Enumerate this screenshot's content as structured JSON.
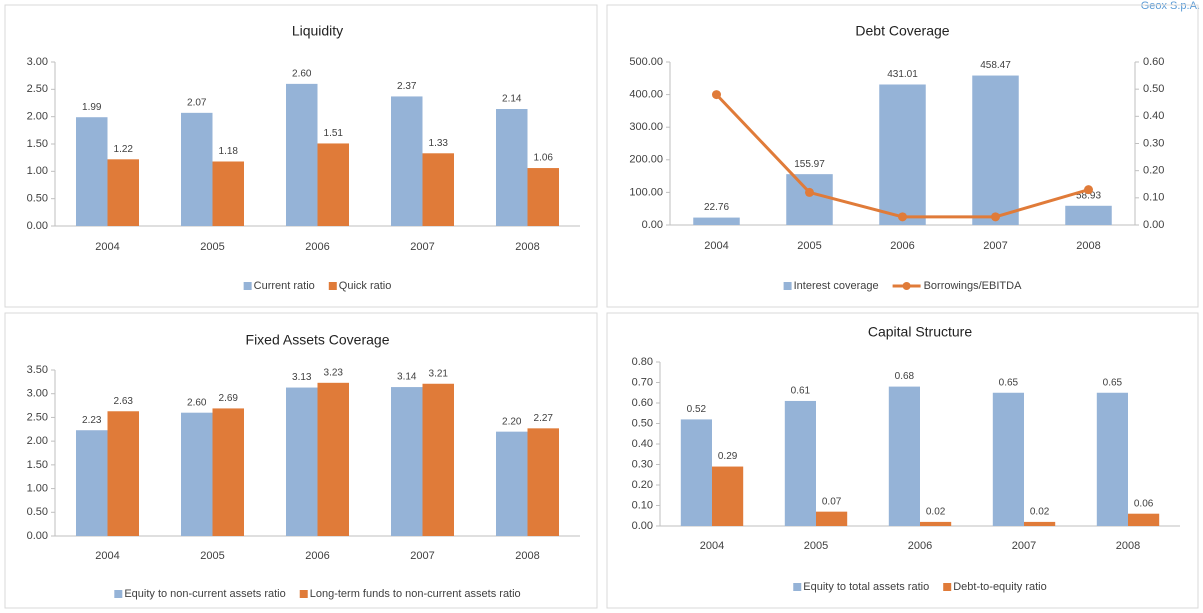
{
  "header": {
    "company": "Geox S.p.A."
  },
  "chart_data": [
    {
      "type": "bar",
      "title": "Liquidity",
      "categories": [
        "2004",
        "2005",
        "2006",
        "2007",
        "2008"
      ],
      "series": [
        {
          "name": "Current ratio",
          "color": "#95b3d7",
          "values": [
            1.99,
            2.07,
            2.6,
            2.37,
            2.14
          ],
          "value_labels": [
            "1.99",
            "2.07",
            "2.60",
            "2.37",
            "2.14"
          ]
        },
        {
          "name": "Quick ratio",
          "color": "#e07b39",
          "values": [
            1.22,
            1.18,
            1.51,
            1.33,
            1.06
          ],
          "value_labels": [
            "1.22",
            "1.18",
            "1.51",
            "1.33",
            "1.06"
          ]
        }
      ],
      "ylim": [
        0,
        3
      ],
      "yticks": [
        {
          "value": 0,
          "label": "0.00"
        },
        {
          "value": 0.5,
          "label": "0.50"
        },
        {
          "value": 1,
          "label": "1.00"
        },
        {
          "value": 1.5,
          "label": "1.50"
        },
        {
          "value": 2,
          "label": "2.00"
        },
        {
          "value": 2.5,
          "label": "2.50"
        },
        {
          "value": 3,
          "label": "3.00"
        }
      ]
    },
    {
      "type": "combo",
      "title": "Debt Coverage",
      "categories": [
        "2004",
        "2005",
        "2006",
        "2007",
        "2008"
      ],
      "series": [
        {
          "name": "Interest coverage",
          "color": "#95b3d7",
          "values": [
            22.76,
            155.97,
            431.01,
            458.47,
            58.93
          ]
        },
        {
          "name": "Borrowings/EBITDA",
          "color": "#e07b39",
          "axis": "y2",
          "values": [
            0.48,
            0.12,
            0.03,
            0.03,
            0.13
          ]
        }
      ],
      "ylim": [
        0,
        500
      ],
      "yticks": [
        {
          "value": 0,
          "label": "0.00"
        },
        {
          "value": 100,
          "label": "100.00"
        },
        {
          "value": 200,
          "label": "200.00"
        },
        {
          "value": 300,
          "label": "300.00"
        },
        {
          "value": 400,
          "label": "400.00"
        },
        {
          "value": 500,
          "label": "500.00"
        }
      ],
      "y2lim": [
        0,
        0.6
      ],
      "y2ticks": [
        {
          "value": 0,
          "label": "0.00"
        },
        {
          "value": 0.1,
          "label": "0.10"
        },
        {
          "value": 0.2,
          "label": "0.20"
        },
        {
          "value": 0.3,
          "label": "0.30"
        },
        {
          "value": 0.4,
          "label": "0.40"
        },
        {
          "value": 0.5,
          "label": "0.50"
        },
        {
          "value": 0.6,
          "label": "0.60"
        }
      ]
    },
    {
      "type": "bar",
      "title": "Fixed Assets Coverage",
      "categories": [
        "2004",
        "2005",
        "2006",
        "2007",
        "2008"
      ],
      "series": [
        {
          "name": "Equity to non-current assets ratio",
          "color": "#95b3d7",
          "values": [
            2.23,
            2.6,
            3.13,
            3.14,
            2.2
          ],
          "value_labels": [
            "2.23",
            "2.60",
            "3.13",
            "3.14",
            "2.20"
          ]
        },
        {
          "name": "Long-term funds to non-current assets ratio",
          "color": "#e07b39",
          "values": [
            2.63,
            2.69,
            3.23,
            3.21,
            2.27
          ],
          "value_labels": [
            "2.63",
            "2.69",
            "3.23",
            "3.21",
            "2.27"
          ]
        }
      ],
      "ylim": [
        0,
        3.5
      ],
      "yticks": [
        {
          "value": 0,
          "label": "0.00"
        },
        {
          "value": 0.5,
          "label": "0.50"
        },
        {
          "value": 1,
          "label": "1.00"
        },
        {
          "value": 1.5,
          "label": "1.50"
        },
        {
          "value": 2,
          "label": "2.00"
        },
        {
          "value": 2.5,
          "label": "2.50"
        },
        {
          "value": 3,
          "label": "3.00"
        },
        {
          "value": 3.5,
          "label": "3.50"
        }
      ]
    },
    {
      "type": "bar",
      "title": "Capital Structure",
      "categories": [
        "2004",
        "2005",
        "2006",
        "2007",
        "2008"
      ],
      "series": [
        {
          "name": "Equity to total assets ratio",
          "color": "#95b3d7",
          "values": [
            0.52,
            0.61,
            0.68,
            0.65,
            0.65
          ],
          "value_labels": [
            "0.52",
            "0.61",
            "0.68",
            "0.65",
            "0.65"
          ]
        },
        {
          "name": "Debt-to-equity ratio",
          "color": "#e07b39",
          "values": [
            0.29,
            0.07,
            0.02,
            0.02,
            0.06
          ],
          "value_labels": [
            "0.29",
            "0.07",
            "0.02",
            "0.02",
            "0.06"
          ]
        }
      ],
      "ylim": [
        0,
        0.8
      ],
      "yticks": [
        {
          "value": 0,
          "label": "0.00"
        },
        {
          "value": 0.1,
          "label": "0.10"
        },
        {
          "value": 0.2,
          "label": "0.20"
        },
        {
          "value": 0.3,
          "label": "0.30"
        },
        {
          "value": 0.4,
          "label": "0.40"
        },
        {
          "value": 0.5,
          "label": "0.50"
        },
        {
          "value": 0.6,
          "label": "0.60"
        },
        {
          "value": 0.7,
          "label": "0.70"
        },
        {
          "value": 0.8,
          "label": "0.80"
        }
      ]
    }
  ]
}
